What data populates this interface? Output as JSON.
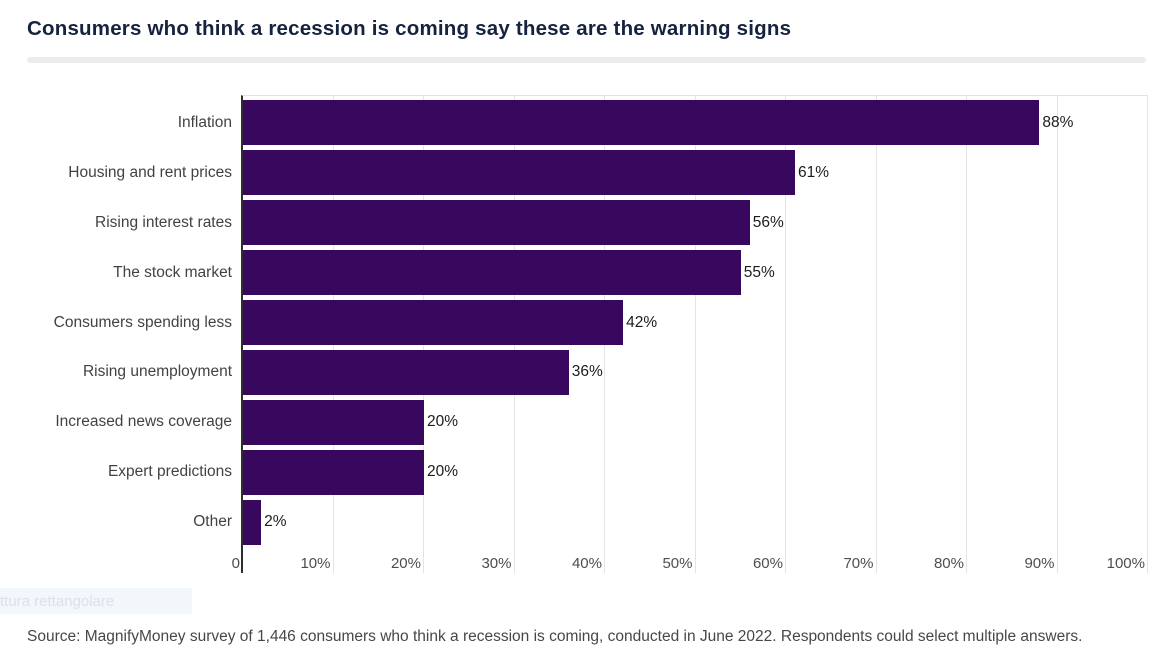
{
  "title": "Consumers who think a recession is coming say these are the warning signs",
  "source_note": "Source: MagnifyMoney survey of 1,446 consumers who think a recession is coming, conducted in June 2022. Respondents could select multiple answers.",
  "overlay": {
    "snip_tooltip_text": "ttura rettangolare"
  },
  "colors": {
    "bar": "#38085e",
    "title": "#16233f",
    "category_label": "#424242",
    "value_label": "#1c1c1c",
    "tick_label": "#4d4d4d",
    "gridline": "#e4e4e4",
    "axis": "#2e2e2e",
    "divider": "#ececec",
    "tooltip_bg": "#f2f7fc",
    "tooltip_text": "#dce1e8"
  },
  "chart_data": {
    "type": "bar",
    "orientation": "horizontal",
    "title": "Consumers who think a recession is coming say these are the warning signs",
    "categories": [
      "Inflation",
      "Housing and rent prices",
      "Rising interest rates",
      "The stock market",
      "Consumers spending less",
      "Rising unemployment",
      "Increased news coverage",
      "Expert predictions",
      "Other"
    ],
    "values": [
      88,
      61,
      56,
      55,
      42,
      36,
      20,
      20,
      2
    ],
    "value_labels": [
      "88%",
      "61%",
      "56%",
      "55%",
      "42%",
      "36%",
      "20%",
      "20%",
      "2%"
    ],
    "x_ticks": [
      "0",
      "10%",
      "20%",
      "30%",
      "40%",
      "50%",
      "60%",
      "70%",
      "80%",
      "90%",
      "100%"
    ],
    "xlim": [
      0,
      100
    ],
    "grid": true,
    "legend": false,
    "xlabel": "",
    "ylabel": ""
  }
}
